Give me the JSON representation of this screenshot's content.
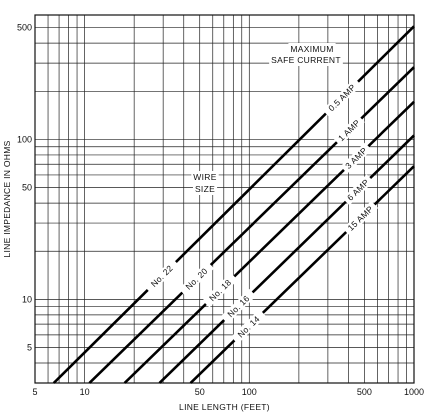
{
  "chart_data": {
    "type": "line",
    "title": "",
    "xlabel": "LINE LENGTH (FEET)",
    "ylabel": "LINE IMPEDANCE IN OHMS",
    "xscale": "log",
    "yscale": "log",
    "xlim": [
      5,
      1000
    ],
    "ylim": [
      3,
      600
    ],
    "grid": true,
    "x_ticks": [
      5,
      10,
      50,
      100,
      500,
      1000
    ],
    "y_ticks": [
      5,
      10,
      50,
      100,
      500
    ],
    "x_tick_labels": [
      "5",
      "10",
      "50",
      "100",
      "500",
      "1000"
    ],
    "y_tick_labels": [
      "5",
      "10",
      "50",
      "100",
      "500"
    ],
    "x_minor_grid": [
      6,
      7,
      8,
      9,
      20,
      30,
      40,
      60,
      70,
      80,
      90,
      200,
      300,
      400,
      600,
      700,
      800,
      900
    ],
    "y_minor_grid": [
      4,
      6,
      7,
      8,
      9,
      20,
      30,
      40,
      60,
      70,
      80,
      90,
      200,
      300,
      400
    ],
    "series": [
      {
        "name": "No. 22",
        "label": "0.5 AMP",
        "x": [
          6.5,
          1000
        ],
        "y": [
          3.0,
          510
        ]
      },
      {
        "name": "No. 20",
        "label": "1 AMP",
        "x": [
          10.7,
          1000
        ],
        "y": [
          3.0,
          283
        ]
      },
      {
        "name": "No. 18",
        "label": "3 AMP",
        "x": [
          17.5,
          1000
        ],
        "y": [
          3.0,
          172
        ]
      },
      {
        "name": "No. 16",
        "label": "6 AMP",
        "x": [
          28.5,
          1000
        ],
        "y": [
          3.0,
          106
        ]
      },
      {
        "name": "No. 14",
        "label": "15 AMP",
        "x": [
          44,
          1000
        ],
        "y": [
          3.0,
          68
        ]
      }
    ],
    "annotations": {
      "max_current_line1": "MAXIMUM",
      "max_current_line2": "SAFE CURRENT",
      "wire_line1": "WIRE",
      "wire_line2": "SIZE"
    }
  }
}
